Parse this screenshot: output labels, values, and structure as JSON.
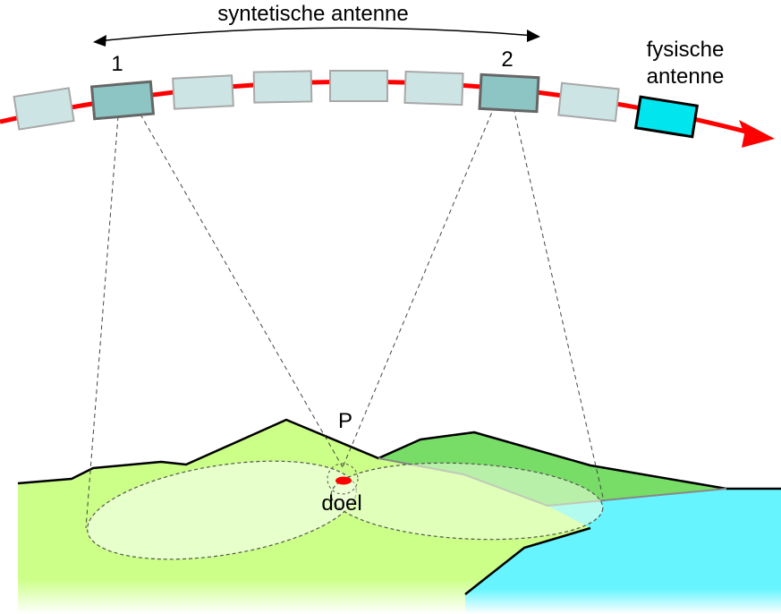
{
  "labels": {
    "synthetic_antenna": "syntetische antenne",
    "position_1": "1",
    "position_2": "2",
    "physical_antenna_line1": "fysische",
    "physical_antenna_line2": "antenne",
    "point": "P",
    "target": "doel"
  },
  "colors": {
    "orbit": "#ff0000",
    "ghost_antenna_fill": "#cde4e4",
    "ghost_antenna_stroke": "#a8a8a8",
    "active_antenna_fill": "#8dc4c4",
    "active_antenna_stroke": "#666666",
    "physical_antenna_fill": "#00e5ee",
    "land_front": "#ccff88",
    "land_back": "#77dd66",
    "sea": "#66f5ff",
    "footprint": "#f0ffe0",
    "target": "#ff0000"
  },
  "icons": {
    "orbit_arrow": "red-arrow",
    "span_arrow": "double-headed-arc-arrow"
  }
}
